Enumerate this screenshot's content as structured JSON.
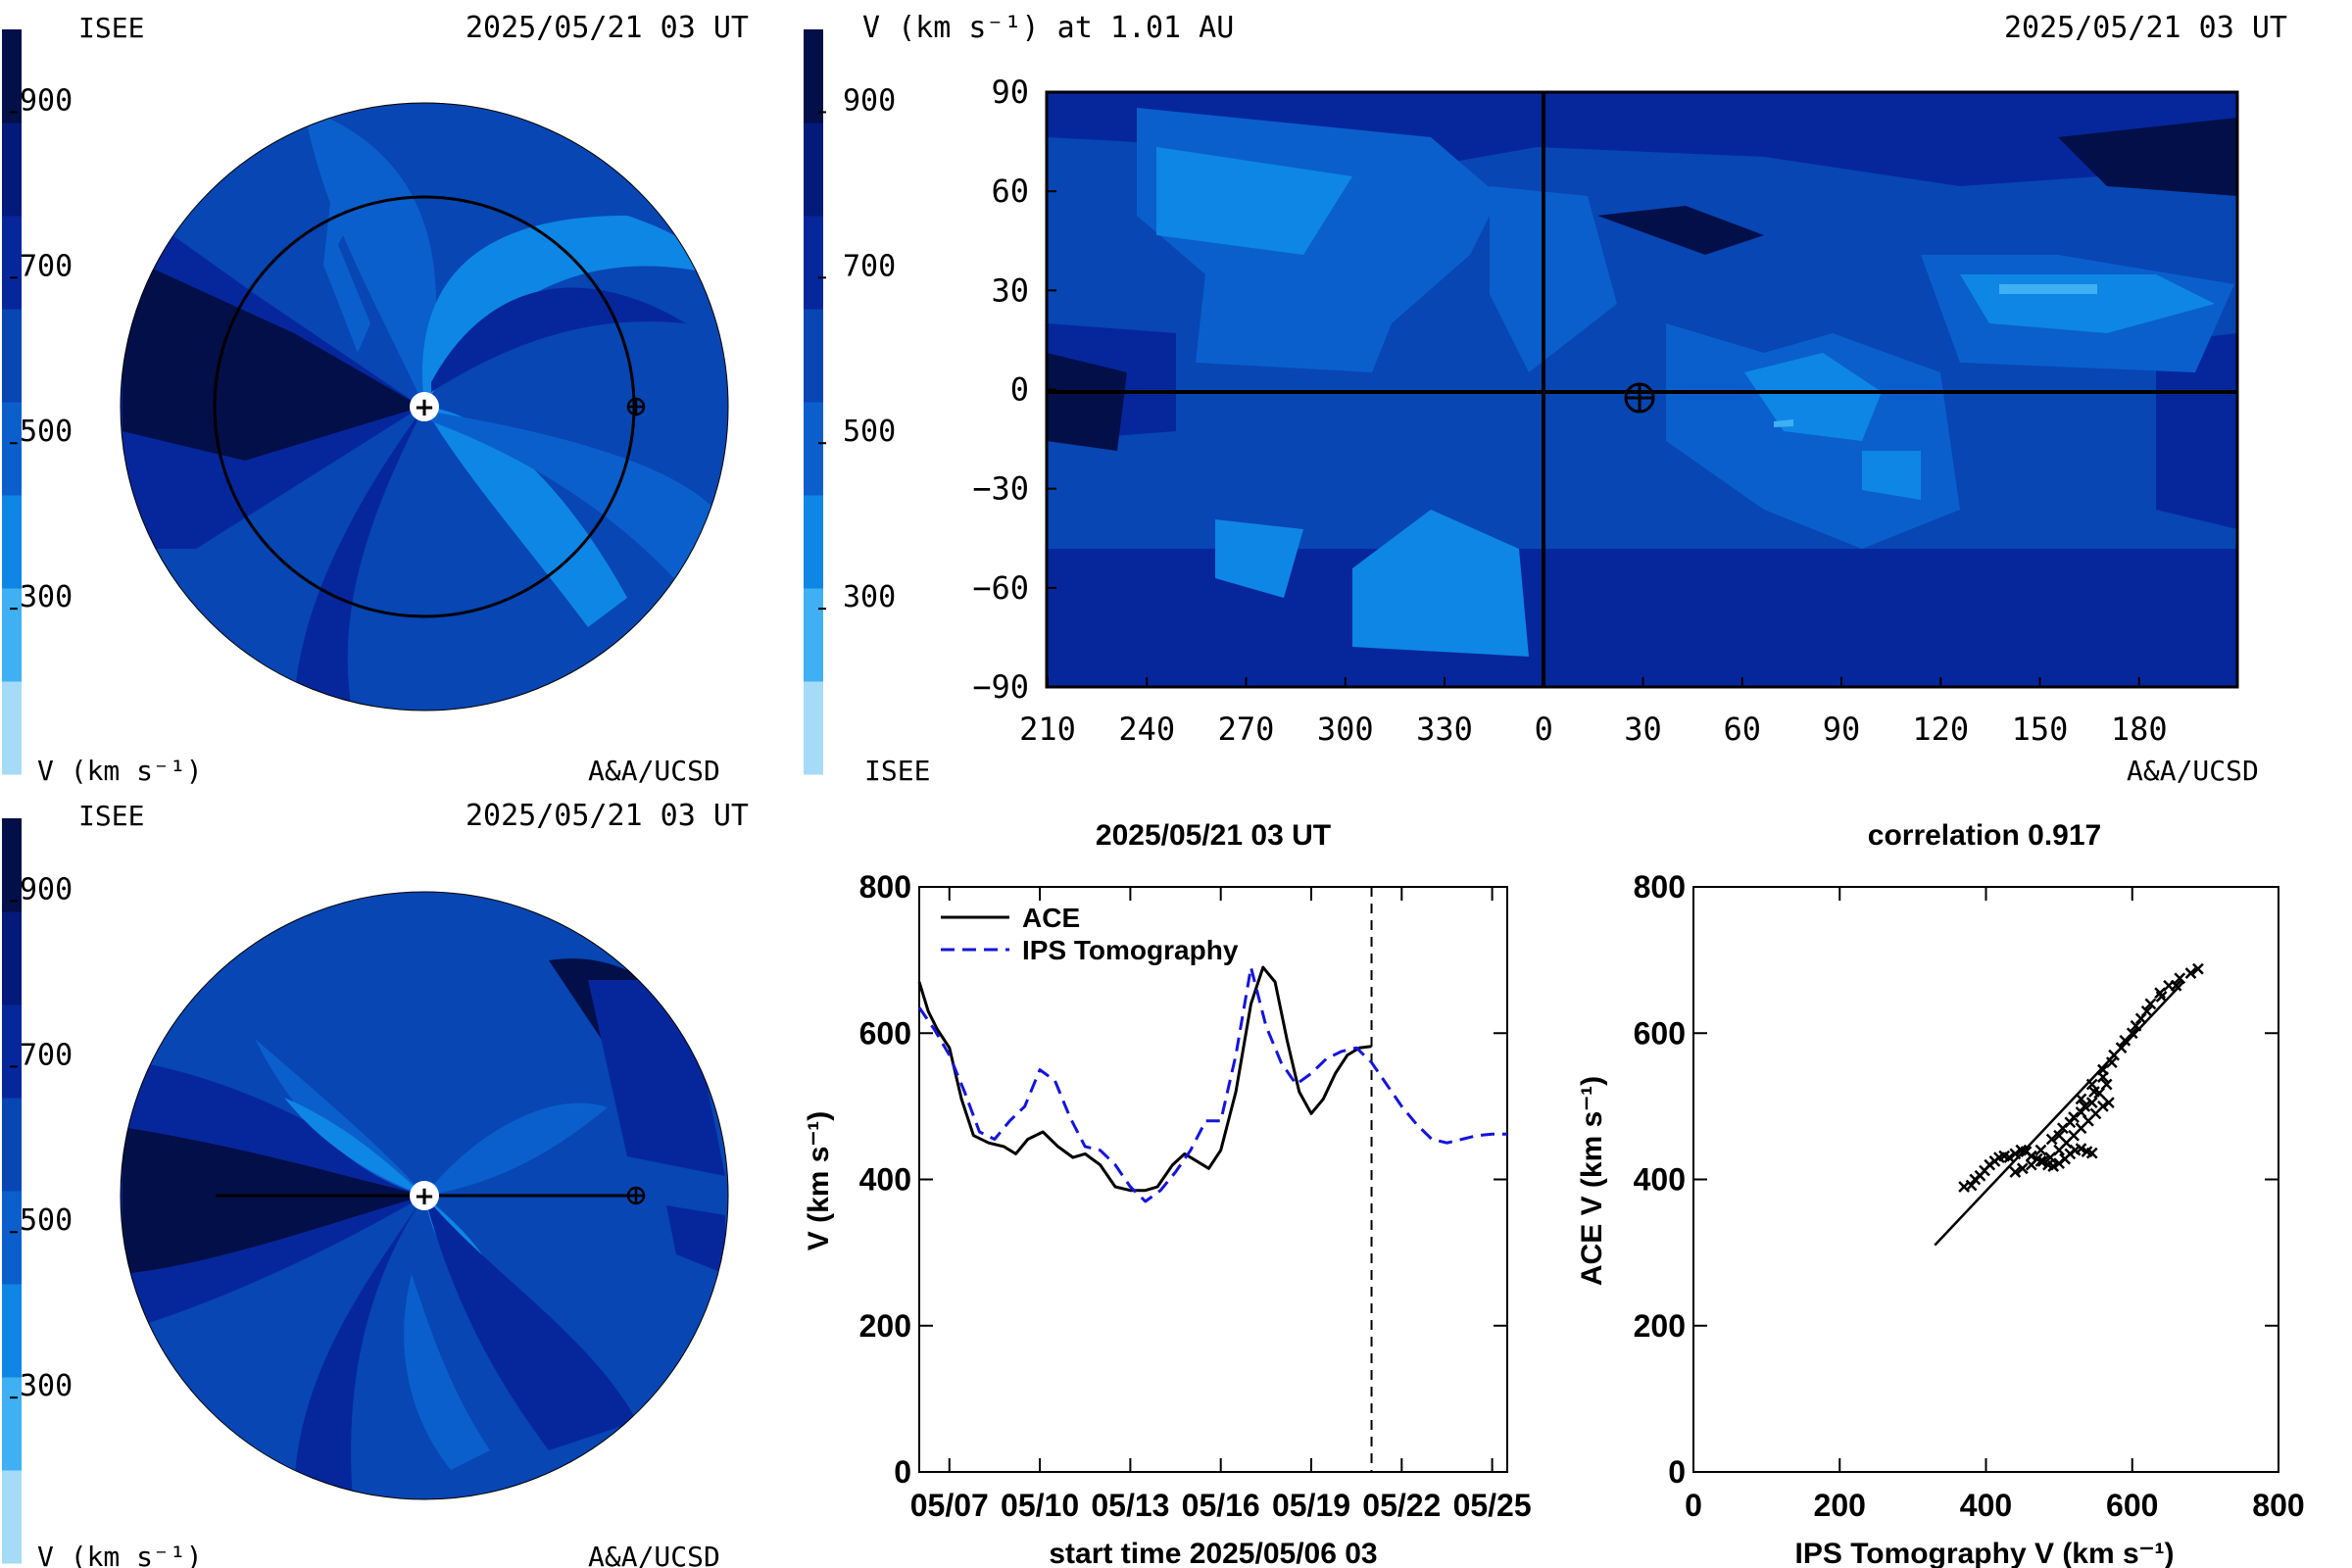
{
  "colors": {
    "levels": [
      "#a6dbf7",
      "#3fb0f3",
      "#0e86e6",
      "#0a5fcd",
      "#0746b3",
      "#06279b",
      "#041a7a",
      "#020f48"
    ],
    "line_ace": "#000000",
    "line_ips": "#1414dd"
  },
  "colorbar": {
    "ticks": [
      "900",
      "700",
      "500",
      "300"
    ],
    "tick_values": [
      900,
      700,
      500,
      300
    ],
    "range": [
      100,
      1000
    ]
  },
  "top_left": {
    "org": "ISEE",
    "time": "2025/05/21 03 UT",
    "unit_label": "V (km s⁻¹)",
    "credit": "A&A/UCSD"
  },
  "bottom_left": {
    "org": "ISEE",
    "time": "2025/05/21 03 UT",
    "unit_label": "V (km s⁻¹)",
    "credit": "A&A/UCSD"
  },
  "map_panel": {
    "title": "V (km s⁻¹) at 1.01 AU",
    "time": "2025/05/21 03 UT",
    "org": "ISEE",
    "credit": "A&A/UCSD"
  },
  "chart_data": [
    {
      "type": "heatmap",
      "title": "V (km s⁻¹) at 1.01 AU",
      "x_tick_labels": [
        "210",
        "240",
        "270",
        "300",
        "330",
        "0",
        "30",
        "60",
        "90",
        "120",
        "150",
        "180"
      ],
      "y_tick_labels": [
        "90",
        "60",
        "30",
        "0",
        "−30",
        "−60",
        "−90"
      ],
      "ylim": [
        -90,
        90
      ],
      "earth_marker": {
        "longitude": 30,
        "latitude": 0
      }
    },
    {
      "type": "line",
      "title": "2025/05/21 03 UT",
      "xlabel": "start time 2025/05/06 03",
      "ylabel": "V (km s⁻¹)",
      "x_tick_labels": [
        "05/07",
        "05/10",
        "05/13",
        "05/16",
        "05/19",
        "05/22",
        "05/25"
      ],
      "x_tick_values": [
        1,
        4,
        7,
        10,
        13,
        16,
        19
      ],
      "xlim": [
        0,
        19.5
      ],
      "ylim": [
        0,
        800
      ],
      "y_ticks": [
        0,
        200,
        400,
        600,
        800
      ],
      "current_time_x": 15,
      "legend_position": "top-left",
      "series": [
        {
          "name": "ACE",
          "style": "solid",
          "x": [
            0,
            0.3,
            0.6,
            1.0,
            1.4,
            1.8,
            2.3,
            2.8,
            3.2,
            3.6,
            4.1,
            4.6,
            5.1,
            5.5,
            6.0,
            6.5,
            7.0,
            7.5,
            7.9,
            8.4,
            8.8,
            9.2,
            9.6,
            10.0,
            10.5,
            11.0,
            11.4,
            11.8,
            12.2,
            12.6,
            13.0,
            13.4,
            13.8,
            14.2,
            14.6,
            15.0
          ],
          "y": [
            670,
            630,
            605,
            580,
            510,
            460,
            450,
            445,
            435,
            455,
            465,
            445,
            430,
            435,
            420,
            390,
            385,
            385,
            390,
            420,
            435,
            425,
            415,
            440,
            520,
            640,
            690,
            670,
            590,
            520,
            490,
            510,
            545,
            570,
            580,
            582
          ]
        },
        {
          "name": "IPS Tomography",
          "style": "dashed",
          "x": [
            0,
            0.5,
            1.0,
            1.5,
            2.0,
            2.5,
            3.0,
            3.5,
            4.0,
            4.5,
            5.0,
            5.5,
            6.0,
            6.5,
            7.0,
            7.5,
            8.0,
            8.5,
            9.0,
            9.5,
            10.0,
            10.5,
            11.0,
            11.5,
            12.0,
            12.5,
            13.0,
            13.5,
            14.0,
            14.5,
            15.0,
            15.5,
            16.0,
            16.5,
            17.0,
            17.5,
            18.0,
            18.5,
            19.0,
            19.5
          ],
          "y": [
            635,
            605,
            570,
            520,
            465,
            455,
            480,
            500,
            550,
            535,
            485,
            445,
            440,
            420,
            390,
            370,
            385,
            410,
            440,
            480,
            480,
            570,
            690,
            610,
            560,
            530,
            545,
            565,
            575,
            580,
            560,
            530,
            500,
            475,
            455,
            450,
            455,
            460,
            462,
            462
          ]
        }
      ]
    },
    {
      "type": "scatter",
      "title": "correlation 0.917",
      "xlabel": "IPS Tomography V (km s⁻¹)",
      "ylabel": "ACE V (km s⁻¹)",
      "xlim": [
        0,
        800
      ],
      "ylim": [
        0,
        800
      ],
      "x_ticks": [
        0,
        200,
        400,
        600,
        800
      ],
      "y_ticks": [
        0,
        200,
        400,
        600,
        800
      ],
      "fit_line": {
        "x": [
          330,
          670
        ],
        "y": [
          310,
          670
        ]
      },
      "points": {
        "x": [
          370,
          380,
          385,
          392,
          398,
          405,
          412,
          418,
          425,
          432,
          440,
          448,
          455,
          462,
          470,
          478,
          485,
          492,
          500,
          508,
          515,
          522,
          530,
          538,
          545,
          440,
          450,
          462,
          475,
          488,
          500,
          510,
          520,
          530,
          540,
          550,
          560,
          568,
          475,
          490,
          505,
          520,
          535,
          548,
          560,
          572,
          585,
          600,
          612,
          625,
          638,
          650,
          665,
          680,
          690,
          530,
          545,
          560,
          575,
          590,
          605,
          620,
          640,
          660,
          500,
          515,
          530,
          545,
          555,
          565
        ],
        "y": [
          390,
          392,
          400,
          405,
          412,
          420,
          425,
          430,
          432,
          430,
          435,
          440,
          438,
          432,
          428,
          425,
          420,
          418,
          422,
          428,
          435,
          440,
          442,
          438,
          436,
          410,
          415,
          420,
          425,
          430,
          440,
          450,
          460,
          470,
          480,
          490,
          500,
          505,
          440,
          455,
          470,
          485,
          500,
          520,
          540,
          560,
          580,
          600,
          620,
          640,
          655,
          665,
          675,
          682,
          688,
          510,
          530,
          550,
          570,
          590,
          610,
          630,
          650,
          665,
          460,
          478,
          492,
          505,
          518,
          530
        ]
      }
    }
  ]
}
